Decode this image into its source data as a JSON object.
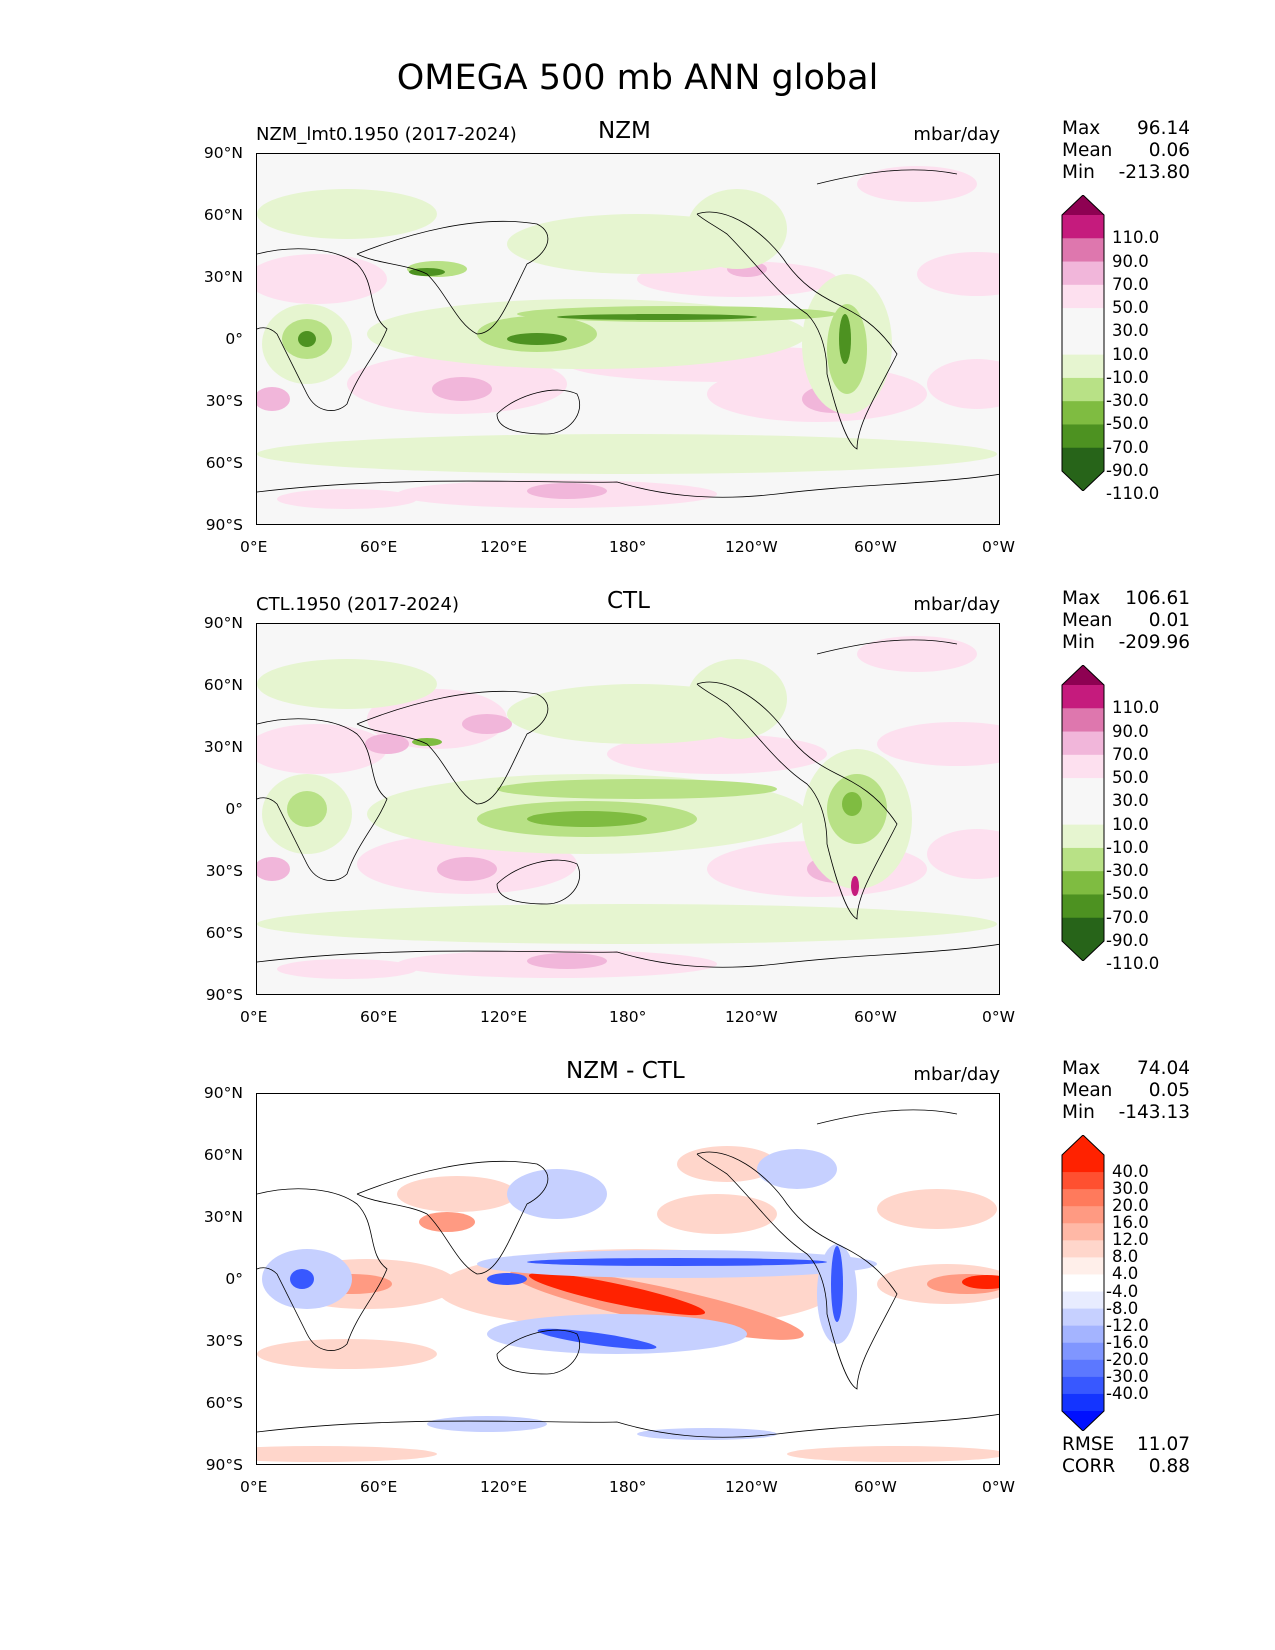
{
  "figure_title": "OMEGA 500 mb ANN global",
  "chart_data": [
    {
      "type": "heatmap",
      "subtype": "global-map-contour",
      "test_name": "NZM_lmt0.1950 (2017-2024)",
      "panel_title": "NZM",
      "units": "mbar/day",
      "stats": {
        "max": "96.14",
        "mean": "0.06",
        "min": "-213.80"
      },
      "colorbar_levels": [
        "110.0",
        "90.0",
        "70.0",
        "50.0",
        "30.0",
        "10.0",
        "-10.0",
        "-30.0",
        "-50.0",
        "-70.0",
        "-90.0",
        "-110.0"
      ],
      "colormap": "PiYG_r",
      "xticks": [
        "0°E",
        "60°E",
        "120°E",
        "180°",
        "120°W",
        "60°W",
        "0°W"
      ],
      "yticks": [
        "90°N",
        "60°N",
        "30°N",
        "0°",
        "30°S",
        "60°S",
        "90°S"
      ]
    },
    {
      "type": "heatmap",
      "subtype": "global-map-contour",
      "test_name": "CTL.1950 (2017-2024)",
      "panel_title": "CTL",
      "units": "mbar/day",
      "stats": {
        "max": "106.61",
        "mean": "0.01",
        "min": "-209.96"
      },
      "colorbar_levels": [
        "110.0",
        "90.0",
        "70.0",
        "50.0",
        "30.0",
        "10.0",
        "-10.0",
        "-30.0",
        "-50.0",
        "-70.0",
        "-90.0",
        "-110.0"
      ],
      "colormap": "PiYG_r",
      "xticks": [
        "0°E",
        "60°E",
        "120°E",
        "180°",
        "120°W",
        "60°W",
        "0°W"
      ],
      "yticks": [
        "90°N",
        "60°N",
        "30°N",
        "0°",
        "30°S",
        "60°S",
        "90°S"
      ]
    },
    {
      "type": "heatmap",
      "subtype": "global-map-contour-difference",
      "panel_title": "NZM - CTL",
      "units": "mbar/day",
      "stats": {
        "max": "74.04",
        "mean": "0.05",
        "min": "-143.13"
      },
      "metrics": {
        "rmse": "11.07",
        "corr": "0.88"
      },
      "colorbar_levels": [
        "40.0",
        "30.0",
        "20.0",
        "16.0",
        "12.0",
        "8.0",
        "4.0",
        "-4.0",
        "-8.0",
        "-12.0",
        "-16.0",
        "-20.0",
        "-30.0",
        "-40.0"
      ],
      "colormap": "bwr",
      "xticks": [
        "0°E",
        "60°E",
        "120°E",
        "180°",
        "120°W",
        "60°W",
        "0°W"
      ],
      "yticks": [
        "90°N",
        "60°N",
        "30°N",
        "0°",
        "30°S",
        "60°S",
        "90°S"
      ]
    }
  ],
  "labels": {
    "max": "Max",
    "mean": "Mean",
    "min": "Min",
    "rmse": "RMSE",
    "corr": "CORR"
  },
  "palettes": {
    "piyg": [
      "#8e0152",
      "#c51b7d",
      "#de77ae",
      "#f1b6da",
      "#fde0ef",
      "#f7f7f7",
      "#f7f7f7",
      "#e6f5d0",
      "#b8e186",
      "#7fbc41",
      "#4d9221",
      "#276419"
    ],
    "bwr": [
      "#ff2200",
      "#ff5030",
      "#ff7a5c",
      "#ff9a82",
      "#ffb8a6",
      "#ffd6cb",
      "#ffefea",
      "#ffffff",
      "#e8ecff",
      "#c6d0ff",
      "#a4b4ff",
      "#8096ff",
      "#5c78ff",
      "#3858ff",
      "#1434ff"
    ]
  }
}
